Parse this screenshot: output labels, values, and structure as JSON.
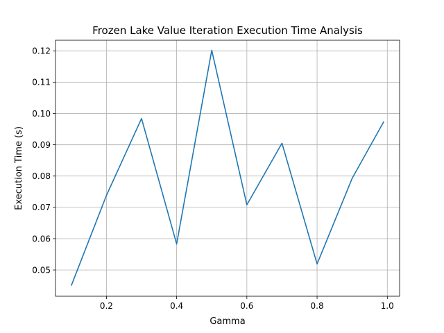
{
  "chart_data": {
    "type": "line",
    "title": "Frozen Lake Value Iteration Execution Time Analysis",
    "xlabel": "Gamma",
    "ylabel": "Execution Time (s)",
    "xlim": [
      0.055,
      1.035
    ],
    "ylim": [
      0.0416,
      0.1234
    ],
    "grid": true,
    "x_ticks": [
      0.2,
      0.4,
      0.6,
      0.8,
      1.0
    ],
    "x_tick_labels": [
      "0.2",
      "0.4",
      "0.6",
      "0.8",
      "1.0"
    ],
    "y_ticks": [
      0.05,
      0.06,
      0.07,
      0.08,
      0.09,
      0.1,
      0.11,
      0.12
    ],
    "y_tick_labels": [
      "0.05",
      "0.06",
      "0.07",
      "0.08",
      "0.09",
      "0.10",
      "0.11",
      "0.12"
    ],
    "series": [
      {
        "color": "#1f77b4",
        "x": [
          0.1,
          0.2,
          0.3,
          0.4,
          0.5,
          0.6,
          0.7,
          0.8,
          0.9,
          0.99
        ],
        "y": [
          0.045,
          0.0738,
          0.0984,
          0.0583,
          0.1202,
          0.0708,
          0.0905,
          0.0519,
          0.0793,
          0.0974
        ]
      }
    ]
  }
}
